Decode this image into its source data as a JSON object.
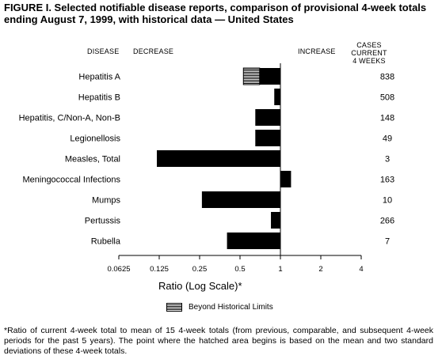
{
  "title": "FIGURE I. Selected notifiable disease reports, comparison of provisional 4-week totals ending August 7, 1999, with historical data — United States",
  "headers": {
    "disease": "DISEASE",
    "decrease": "DECREASE",
    "increase": "INCREASE",
    "cases_line1": "CASES CURRENT",
    "cases_line2": "4 WEEKS"
  },
  "legend": {
    "label": "Beyond Historical Limits"
  },
  "footnote": "*Ratio of current 4-week total to mean of 15 4-week totals (from previous, comparable, and subsequent 4-week periods for the past 5 years). The point where the hatched area begins is based on the mean and two standard deviations of these 4-week totals.",
  "chart_data": {
    "type": "bar",
    "orientation": "horizontal",
    "xlabel": "Ratio (Log Scale)*",
    "xscale": "log2",
    "xlim": [
      0.0625,
      4
    ],
    "xticks": [
      0.0625,
      0.125,
      0.25,
      0.5,
      1,
      2,
      4
    ],
    "xtick_labels": [
      "0.0625",
      "0.125",
      "0.25",
      "0.5",
      "1",
      "2",
      "4"
    ],
    "baseline": 1,
    "categories": [
      "Hepatitis A",
      "Hepatitis B",
      "Hepatitis, C/Non-A, Non-B",
      "Legionellosis",
      "Measles, Total",
      "Meningococcal Infections",
      "Mumps",
      "Pertussis",
      "Rubella"
    ],
    "values": [
      0.53,
      0.9,
      0.65,
      0.65,
      0.12,
      1.2,
      0.26,
      0.85,
      0.4
    ],
    "beyond_historical_limits_start": [
      0.7,
      null,
      null,
      null,
      null,
      null,
      null,
      null,
      null
    ],
    "cases_current_4_weeks": [
      "838",
      "508",
      "148",
      "49",
      "3",
      "163",
      "10",
      "266",
      "7"
    ],
    "colors": {
      "bar": "#000000",
      "hatch": "#000000",
      "background": "#ffffff"
    }
  }
}
